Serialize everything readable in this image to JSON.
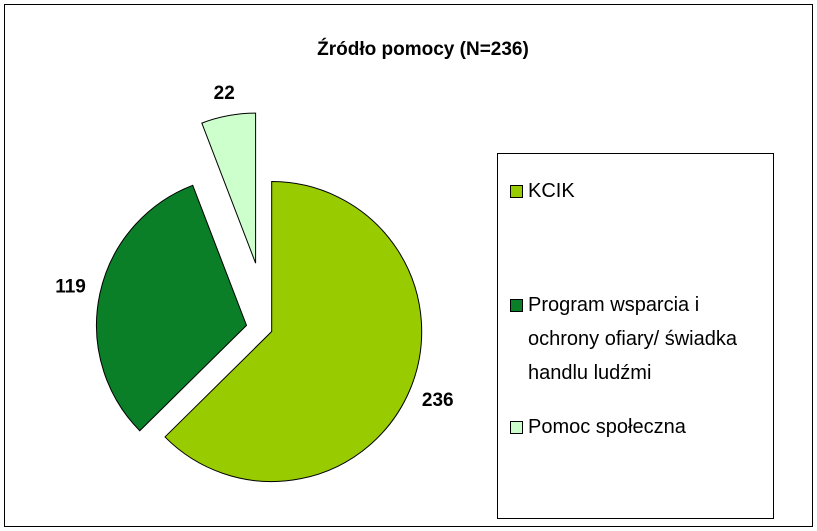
{
  "chart_data": {
    "type": "pie",
    "title": "Źródło pomocy (N=236)",
    "categories": [
      "KCIK",
      "Program wsparcia i ochrony ofiary/ świadka handlu ludźmi",
      "Pomoc społeczna"
    ],
    "values": [
      236,
      119,
      22
    ],
    "colors": [
      "#99cc00",
      "#0a7f28",
      "#ccffcc"
    ],
    "legend": "right"
  }
}
